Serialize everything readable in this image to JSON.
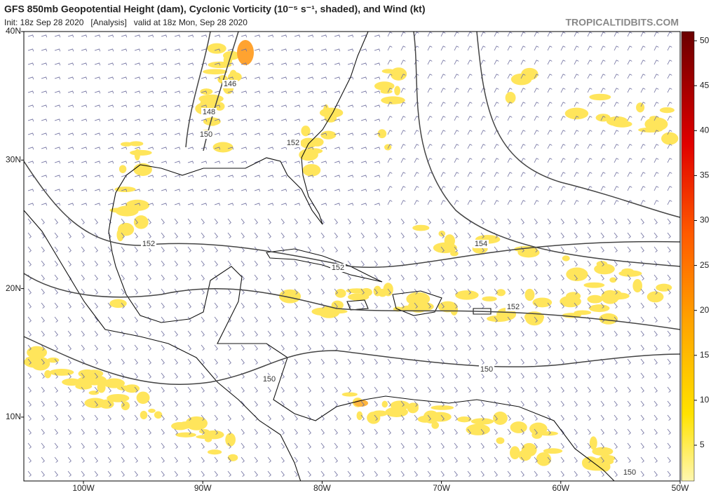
{
  "header": {
    "title": "GFS 850mb Geopotential Height (dam), Cyclonic Vorticity (10⁻⁵ s⁻¹, shaded), and Wind (kt)",
    "subtitle": "Init: 18z Sep 28 2020   [Analysis]   valid at 18z Mon, Sep 28 2020",
    "site": "TROPICALTIDBITS.COM"
  },
  "map": {
    "lat_labels": [
      "40N",
      "30N",
      "20N",
      "10N"
    ],
    "lon_labels": [
      "100W",
      "90W",
      "80W",
      "70W",
      "60W",
      "50W"
    ],
    "contour_labels": [
      "146",
      "148",
      "150",
      "152",
      "152",
      "152",
      "154",
      "152",
      "150",
      "150",
      "150"
    ]
  },
  "colorbar": {
    "ticks": [
      5,
      10,
      15,
      20,
      25,
      30,
      35,
      40,
      45,
      50
    ]
  }
}
